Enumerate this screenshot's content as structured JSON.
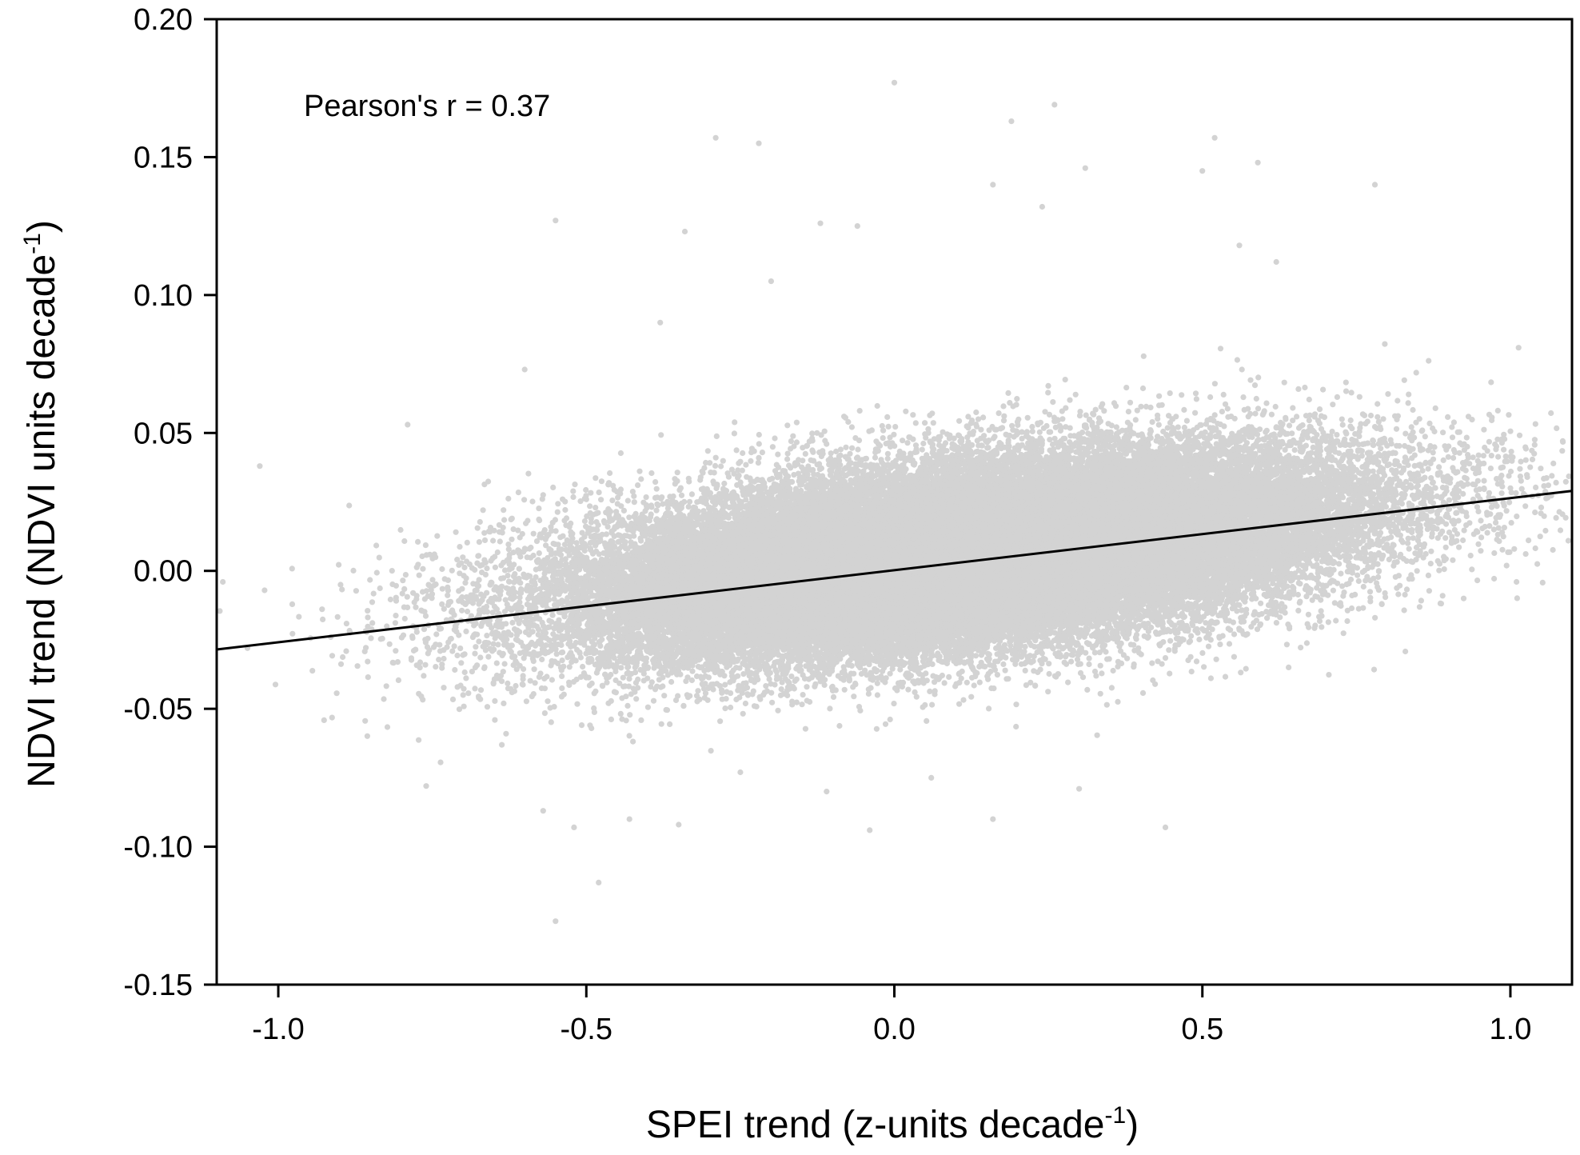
{
  "chart_data": {
    "type": "scatter",
    "title": "",
    "annotation": "Pearson's r = 0.37",
    "xlabel": {
      "main": "SPEI trend (z-units decade",
      "sup": "-1",
      "close": ")"
    },
    "ylabel": {
      "main": "NDVI trend (NDVI units decade",
      "sup": "-1",
      "close": ")"
    },
    "xlim": [
      -1.1,
      1.1
    ],
    "ylim": [
      -0.15,
      0.2
    ],
    "xticks": [
      -1.0,
      -0.5,
      0.0,
      0.5,
      1.0
    ],
    "xtick_labels": [
      "-1.0",
      "-0.5",
      "0.0",
      "0.5",
      "1.0"
    ],
    "yticks": [
      -0.15,
      -0.1,
      -0.05,
      0.0,
      0.05,
      0.1,
      0.15,
      0.2
    ],
    "ytick_labels": [
      "-0.15",
      "-0.10",
      "-0.05",
      "0.00",
      "0.05",
      "0.10",
      "0.15",
      "0.20"
    ],
    "grid": false,
    "point_color": "#d3d3d3",
    "line_color": "#000000",
    "regression_line": {
      "x": [
        -1.1,
        1.1
      ],
      "y": [
        -0.0285,
        0.029
      ]
    },
    "point_cloud": {
      "n_points": 60000,
      "x_center": 0.12,
      "x_sd": 0.3,
      "y_intercept": 0.003,
      "y_slope": 0.026,
      "y_sd": 0.014
    },
    "outliers": [
      [
        0.0,
        0.177
      ],
      [
        0.26,
        0.169
      ],
      [
        0.19,
        0.163
      ],
      [
        -0.29,
        0.157
      ],
      [
        -0.22,
        0.155
      ],
      [
        0.52,
        0.157
      ],
      [
        0.5,
        0.145
      ],
      [
        0.59,
        0.148
      ],
      [
        0.78,
        0.14
      ],
      [
        0.16,
        0.14
      ],
      [
        0.31,
        0.146
      ],
      [
        -0.34,
        0.123
      ],
      [
        -0.12,
        0.126
      ],
      [
        -0.06,
        0.125
      ],
      [
        0.24,
        0.132
      ],
      [
        0.56,
        0.118
      ],
      [
        -0.55,
        0.127
      ],
      [
        0.62,
        0.112
      ],
      [
        -0.2,
        0.105
      ],
      [
        -0.38,
        0.09
      ],
      [
        -1.03,
        0.038
      ],
      [
        -0.79,
        0.053
      ],
      [
        -0.6,
        0.073
      ],
      [
        0.93,
        0.045
      ],
      [
        1.0,
        0.03
      ],
      [
        1.05,
        0.023
      ],
      [
        0.89,
        -0.009
      ],
      [
        -1.09,
        -0.004
      ],
      [
        -1.05,
        -0.028
      ],
      [
        -0.76,
        -0.078
      ],
      [
        -0.57,
        -0.087
      ],
      [
        -0.52,
        -0.093
      ],
      [
        -0.48,
        -0.113
      ],
      [
        -0.55,
        -0.127
      ],
      [
        -0.35,
        -0.092
      ],
      [
        -0.43,
        -0.09
      ],
      [
        -0.04,
        -0.094
      ],
      [
        0.16,
        -0.09
      ],
      [
        0.44,
        -0.093
      ],
      [
        0.3,
        -0.079
      ],
      [
        -0.25,
        -0.073
      ],
      [
        0.64,
        -0.035
      ],
      [
        -0.11,
        -0.08
      ],
      [
        0.06,
        -0.075
      ],
      [
        -0.7,
        -0.045
      ]
    ]
  }
}
